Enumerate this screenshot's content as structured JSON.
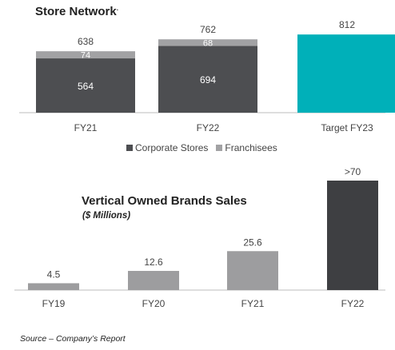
{
  "chart_data": [
    {
      "type": "bar",
      "title": "Store Network",
      "categories": [
        "FY21",
        "FY22",
        "Target FY23"
      ],
      "series": [
        {
          "name": "Corporate Stores",
          "values": [
            564,
            694,
            null
          ]
        },
        {
          "name": "Franchisees",
          "values": [
            74,
            68,
            null
          ]
        },
        {
          "name": "",
          "values": [
            null,
            null,
            812
          ]
        }
      ],
      "totals": [
        "638",
        "762",
        "812"
      ],
      "stacked": true,
      "ylim": [
        0,
        830
      ],
      "legend_position": "bottom",
      "grid": false,
      "colors": {
        "corporate": "#4d4e51",
        "franchisees": "#a2a2a4",
        "target": "#00b0b9"
      }
    },
    {
      "type": "bar",
      "title": "Vertical Owned Brands Sales",
      "subtitle": "($ Millions)",
      "categories": [
        "FY19",
        "FY20",
        "FY21",
        "FY22"
      ],
      "values": [
        4.5,
        12.6,
        25.6,
        72
      ],
      "value_labels": [
        "4.5",
        "12.6",
        "25.6",
        ">70"
      ],
      "ylim": [
        0,
        72
      ],
      "grid": false,
      "colors": {
        "history": "#9d9d9f",
        "latest": "#3e3f42"
      }
    }
  ],
  "source": "Source – Company’s Report"
}
